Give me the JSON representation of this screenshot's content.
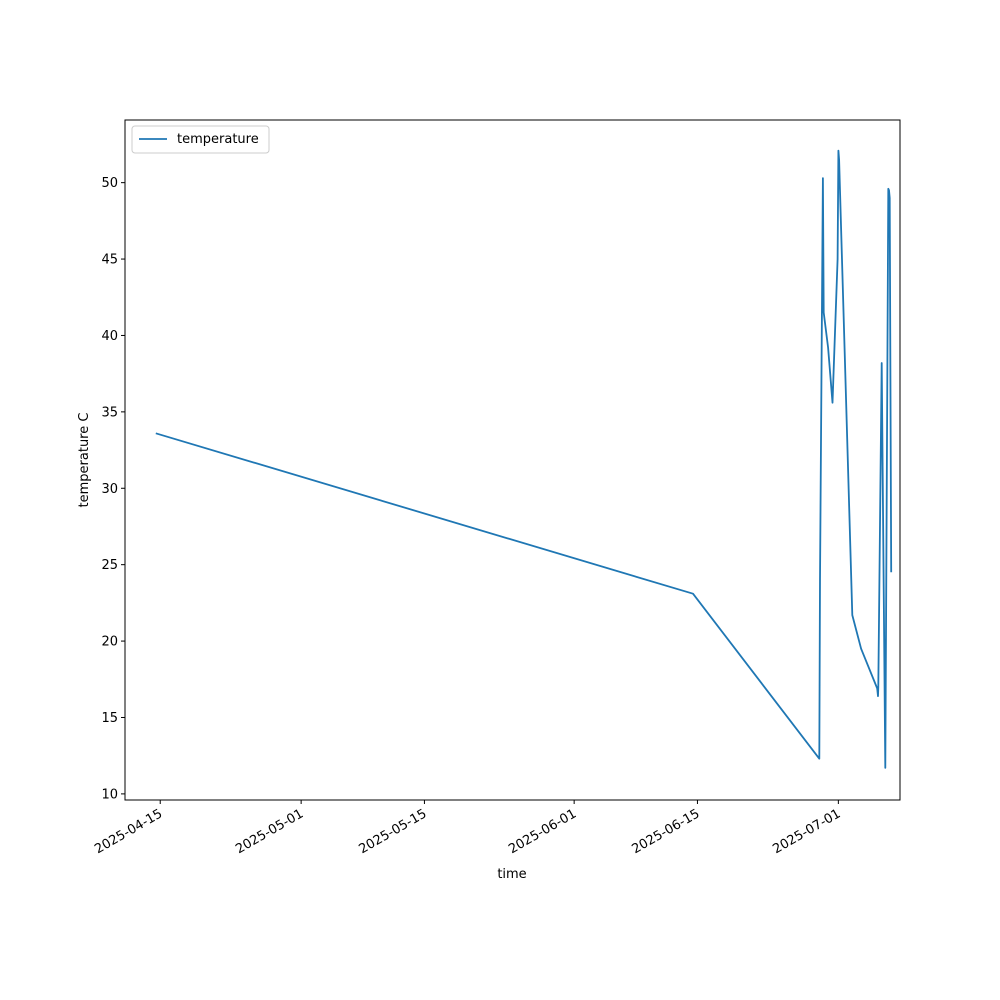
{
  "chart_data": {
    "type": "line",
    "title": "",
    "xlabel": "time",
    "ylabel": "temperature C",
    "x_type": "date",
    "xlim": [
      "2025-04-11",
      "2025-07-08"
    ],
    "ylim": [
      9.6,
      54.1
    ],
    "x_ticks": [
      "2025-04-15",
      "2025-05-01",
      "2025-05-15",
      "2025-06-01",
      "2025-06-15",
      "2025-07-01"
    ],
    "y_ticks": [
      10,
      15,
      20,
      25,
      30,
      35,
      40,
      45,
      50
    ],
    "grid": false,
    "legend": {
      "position": "top-left",
      "entries": [
        "temperature"
      ]
    },
    "series": [
      {
        "name": "temperature",
        "color": "#1f77b4",
        "points": [
          [
            "2025-04-14T12:00",
            33.6
          ],
          [
            "2025-06-14T12:00",
            23.1
          ],
          [
            "2025-06-28T20:00",
            12.3
          ],
          [
            "2025-06-28T22:00",
            24.0
          ],
          [
            "2025-06-29T06:00",
            50.3
          ],
          [
            "2025-06-29T08:00",
            41.5
          ],
          [
            "2025-06-29T20:00",
            39.2
          ],
          [
            "2025-06-30T08:00",
            35.6
          ],
          [
            "2025-06-30T22:00",
            45.0
          ],
          [
            "2025-07-01T00:00",
            52.1
          ],
          [
            "2025-07-01T02:00",
            51.5
          ],
          [
            "2025-07-02T14:00",
            21.7
          ],
          [
            "2025-07-03T14:00",
            19.5
          ],
          [
            "2025-07-05T10:00",
            16.9
          ],
          [
            "2025-07-05T12:00",
            16.4
          ],
          [
            "2025-07-05T13:00",
            17.0
          ],
          [
            "2025-07-05T22:00",
            38.2
          ],
          [
            "2025-07-06T08:00",
            11.7
          ],
          [
            "2025-07-06T16:00",
            49.6
          ],
          [
            "2025-07-06T18:00",
            49.5
          ],
          [
            "2025-07-06T20:00",
            49.0
          ],
          [
            "2025-07-07T00:00",
            24.5
          ]
        ]
      }
    ]
  }
}
